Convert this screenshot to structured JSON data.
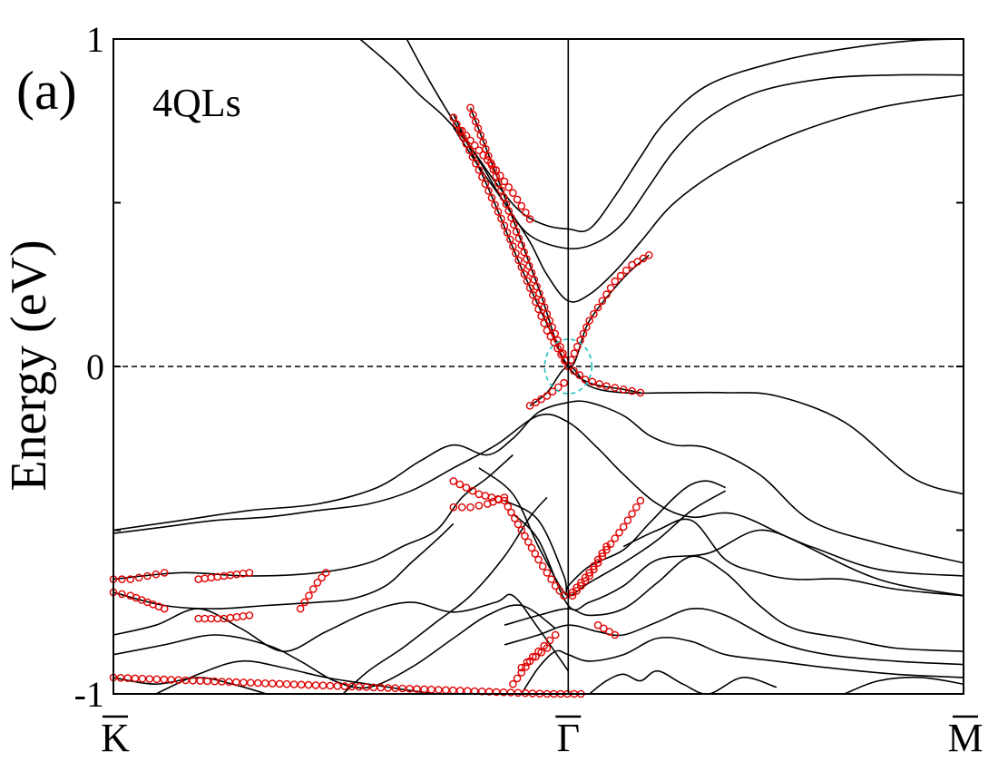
{
  "chart_data": {
    "type": "line",
    "panel_label": "(a)",
    "annotation": "4QLs",
    "ylabel": "Energy (eV)",
    "xlabel": "",
    "xlim": [
      0,
      1
    ],
    "ylim": [
      -1,
      1
    ],
    "yticks": [
      {
        "value": 1,
        "label": "1"
      },
      {
        "value": 0.5,
        "label": ""
      },
      {
        "value": 0,
        "label": "0"
      },
      {
        "value": -0.5,
        "label": ""
      },
      {
        "value": -1,
        "label": "-1"
      }
    ],
    "kpoints": [
      {
        "x": 0,
        "label": "K"
      },
      {
        "x": 0.535,
        "label": "Γ"
      },
      {
        "x": 1,
        "label": "M"
      }
    ],
    "fermi_level": 0,
    "highlight_circle": {
      "x": 0.535,
      "y": 0,
      "color": "#20c0c0"
    },
    "marker_color": "#e00000",
    "bands": [
      {
        "x": [
          0.29,
          0.33,
          0.36,
          0.39,
          0.42,
          0.45,
          0.48,
          0.51,
          0.535,
          0.56,
          0.59,
          0.62,
          0.65,
          0.7,
          0.78,
          0.86,
          0.94,
          1.0
        ],
        "y": [
          1.0,
          0.91,
          0.83,
          0.76,
          0.67,
          0.56,
          0.47,
          0.43,
          0.42,
          0.42,
          0.52,
          0.64,
          0.75,
          0.86,
          0.93,
          0.97,
          0.995,
          1.0
        ]
      },
      {
        "x": [
          0.345,
          0.37,
          0.4,
          0.43,
          0.46,
          0.49,
          0.535,
          0.57,
          0.6,
          0.63,
          0.66,
          0.7,
          0.76,
          0.84,
          0.92,
          1.0
        ],
        "y": [
          1.0,
          0.88,
          0.75,
          0.63,
          0.5,
          0.4,
          0.36,
          0.38,
          0.44,
          0.55,
          0.66,
          0.76,
          0.84,
          0.88,
          0.89,
          0.89
        ]
      },
      {
        "x": [
          0.4,
          0.43,
          0.46,
          0.49,
          0.51,
          0.535,
          0.56,
          0.59,
          0.62,
          0.66,
          0.72,
          0.8,
          0.9,
          1.0
        ],
        "y": [
          0.73,
          0.61,
          0.5,
          0.38,
          0.28,
          0.2,
          0.22,
          0.29,
          0.38,
          0.5,
          0.61,
          0.71,
          0.79,
          0.83
        ]
      },
      {
        "x": [
          0.4,
          0.44,
          0.48,
          0.51,
          0.535,
          0.56,
          0.6,
          0.62
        ],
        "y": [
          0.77,
          0.55,
          0.3,
          0.13,
          0.0,
          -0.05,
          -0.07,
          -0.08
        ]
      },
      {
        "x": [
          0.42,
          0.46,
          0.5,
          0.535,
          0.56,
          0.6,
          0.63
        ],
        "y": [
          0.79,
          0.52,
          0.24,
          0.0,
          0.14,
          0.27,
          0.34
        ]
      },
      {
        "x": [
          0.49,
          0.51,
          0.535,
          0.56,
          0.6,
          0.66,
          0.72,
          0.78,
          0.86,
          0.94,
          1.0
        ],
        "y": [
          -0.12,
          -0.08,
          0.0,
          -0.06,
          -0.08,
          -0.08,
          -0.08,
          -0.09,
          -0.17,
          -0.34,
          -0.39
        ]
      },
      {
        "x": [
          0.0,
          0.08,
          0.16,
          0.24,
          0.31,
          0.36,
          0.4,
          0.44,
          0.47,
          0.5,
          0.535,
          0.56,
          0.6,
          0.63,
          0.66,
          0.7,
          0.76,
          0.82,
          0.9,
          1.0
        ],
        "y": [
          -0.5,
          -0.47,
          -0.44,
          -0.42,
          -0.37,
          -0.29,
          -0.24,
          -0.27,
          -0.22,
          -0.14,
          -0.11,
          -0.11,
          -0.15,
          -0.21,
          -0.24,
          -0.25,
          -0.33,
          -0.47,
          -0.54,
          -0.6
        ]
      },
      {
        "x": [
          0.0,
          0.06,
          0.12,
          0.18,
          0.24,
          0.3,
          0.35,
          0.4,
          0.45,
          0.5,
          0.535,
          0.57,
          0.6,
          0.64,
          0.68,
          0.73,
          0.8,
          0.9,
          1.0
        ],
        "y": [
          -0.51,
          -0.49,
          -0.47,
          -0.46,
          -0.44,
          -0.42,
          -0.38,
          -0.31,
          -0.24,
          -0.15,
          -0.17,
          -0.25,
          -0.33,
          -0.42,
          -0.46,
          -0.45,
          -0.53,
          -0.65,
          -0.7
        ]
      },
      {
        "x": [
          0.0,
          0.08,
          0.16,
          0.24,
          0.3,
          0.34,
          0.38,
          0.41,
          0.44,
          0.47
        ],
        "y": [
          -0.65,
          -0.63,
          -0.64,
          -0.63,
          -0.6,
          -0.55,
          -0.5,
          -0.4,
          -0.34,
          -0.27
        ]
      },
      {
        "x": [
          0.0,
          0.06,
          0.12,
          0.18,
          0.24,
          0.28,
          0.32,
          0.35,
          0.38,
          0.4
        ],
        "y": [
          -0.69,
          -0.73,
          -0.74,
          -0.73,
          -0.72,
          -0.71,
          -0.67,
          -0.6,
          -0.53,
          -0.48
        ]
      },
      {
        "x": [
          0.0,
          0.05,
          0.1,
          0.15,
          0.2,
          0.25,
          0.3,
          0.35,
          0.4,
          0.45,
          0.47,
          0.5,
          0.535
        ],
        "y": [
          -0.82,
          -0.79,
          -0.74,
          -0.8,
          -0.87,
          -0.81,
          -0.75,
          -0.72,
          -0.75,
          -0.72,
          -0.7,
          -0.8,
          -0.93
        ]
      },
      {
        "x": [
          0.0,
          0.06,
          0.12,
          0.18,
          0.22,
          0.26,
          0.3,
          0.35,
          0.4,
          0.44,
          0.48,
          0.52
        ],
        "y": [
          -0.88,
          -0.85,
          -0.82,
          -0.85,
          -0.9,
          -0.96,
          -0.98,
          -0.92,
          -0.83,
          -0.76,
          -0.73,
          -0.8
        ]
      },
      {
        "x": [
          0.0,
          0.05,
          0.1,
          0.14,
          0.18
        ],
        "y": [
          -0.95,
          -0.97,
          -0.95,
          -0.97,
          -1.0
        ]
      },
      {
        "x": [
          0.05,
          0.1,
          0.15,
          0.2,
          0.25,
          0.3,
          0.35,
          0.38
        ],
        "y": [
          -1.0,
          -0.94,
          -0.9,
          -0.92,
          -0.95,
          -0.97,
          -0.99,
          -1.0
        ]
      },
      {
        "x": [
          0.27,
          0.3,
          0.34,
          0.38,
          0.42,
          0.46,
          0.49,
          0.51
        ],
        "y": [
          -1.0,
          -0.93,
          -0.86,
          -0.78,
          -0.7,
          -0.58,
          -0.46,
          -0.4
        ]
      },
      {
        "x": [
          0.43,
          0.47,
          0.5,
          0.53,
          0.535,
          0.56,
          0.6,
          0.63,
          0.66,
          0.68,
          0.7,
          0.72
        ],
        "y": [
          -0.31,
          -0.39,
          -0.55,
          -0.69,
          -0.67,
          -0.61,
          -0.56,
          -0.48,
          -0.4,
          -0.36,
          -0.35,
          -0.37
        ]
      },
      {
        "x": [
          0.46,
          0.5,
          0.53,
          0.535,
          0.56,
          0.6,
          0.64,
          0.68,
          0.72
        ],
        "y": [
          -0.41,
          -0.47,
          -0.64,
          -0.7,
          -0.66,
          -0.6,
          -0.53,
          -0.44,
          -0.38
        ]
      },
      {
        "x": [
          0.47,
          0.5,
          0.535,
          0.56,
          0.6,
          0.64,
          0.7,
          0.76,
          0.82,
          0.9,
          1.0
        ],
        "y": [
          -0.45,
          -0.53,
          -0.73,
          -0.72,
          -0.67,
          -0.59,
          -0.57,
          -0.5,
          -0.55,
          -0.62,
          -0.64
        ]
      },
      {
        "x": [
          0.6,
          0.64,
          0.68,
          0.72,
          0.76,
          0.8,
          0.86,
          0.92,
          1.0
        ],
        "y": [
          -0.55,
          -0.5,
          -0.47,
          -0.59,
          -0.63,
          -0.65,
          -0.65,
          -0.68,
          -0.7
        ]
      },
      {
        "x": [
          0.46,
          0.5,
          0.535,
          0.56,
          0.6,
          0.64,
          0.68,
          0.72,
          0.76,
          0.8,
          0.86,
          0.92,
          1.0
        ],
        "y": [
          -0.79,
          -0.76,
          -0.74,
          -0.76,
          -0.74,
          -0.66,
          -0.58,
          -0.63,
          -0.73,
          -0.8,
          -0.83,
          -0.86,
          -0.87
        ]
      },
      {
        "x": [
          0.46,
          0.5,
          0.535,
          0.57,
          0.6,
          0.64,
          0.68,
          0.72,
          0.78,
          0.84,
          0.92,
          1.0
        ],
        "y": [
          -0.85,
          -0.82,
          -0.79,
          -0.81,
          -0.82,
          -0.78,
          -0.74,
          -0.76,
          -0.84,
          -0.88,
          -0.9,
          -0.91
        ]
      },
      {
        "x": [
          0.48,
          0.5,
          0.52,
          0.535,
          0.56,
          0.6,
          0.64,
          0.68,
          0.72,
          0.78,
          0.84,
          0.92,
          1.0
        ],
        "y": [
          -1.0,
          -0.92,
          -0.87,
          -0.88,
          -0.9,
          -0.88,
          -0.83,
          -0.84,
          -0.88,
          -0.9,
          -0.92,
          -0.94,
          -0.95
        ]
      },
      {
        "x": [
          0.56,
          0.58,
          0.6,
          0.62,
          0.64,
          0.67,
          0.7,
          0.74,
          0.78
        ],
        "y": [
          -1.0,
          -0.96,
          -0.94,
          -0.96,
          -0.93,
          -0.97,
          -1.0,
          -0.95,
          -0.98
        ]
      },
      {
        "x": [
          0.86,
          0.9,
          0.95,
          1.0
        ],
        "y": [
          -1.0,
          -0.96,
          -0.95,
          -0.97
        ]
      }
    ],
    "weighted_states": [
      {
        "x": [
          0.4,
          0.43,
          0.46,
          0.49,
          0.51,
          0.535,
          0.555,
          0.58,
          0.6,
          0.62
        ],
        "y": [
          0.76,
          0.6,
          0.43,
          0.24,
          0.11,
          0.0,
          -0.04,
          -0.06,
          -0.07,
          -0.08
        ]
      },
      {
        "x": [
          0.42,
          0.45,
          0.48,
          0.51,
          0.535,
          0.56,
          0.59,
          0.61,
          0.63
        ],
        "y": [
          0.79,
          0.58,
          0.37,
          0.16,
          0.0,
          0.14,
          0.26,
          0.31,
          0.34
        ]
      },
      {
        "x": [
          0.41,
          0.43,
          0.45,
          0.47,
          0.49
        ],
        "y": [
          0.72,
          0.66,
          0.6,
          0.53,
          0.45
        ]
      },
      {
        "x": [
          0.49,
          0.51,
          0.53
        ],
        "y": [
          -0.12,
          -0.09,
          -0.05
        ]
      },
      {
        "x": [
          0.0,
          0.02,
          0.04,
          0.06
        ],
        "y": [
          -0.65,
          -0.65,
          -0.64,
          -0.63
        ]
      },
      {
        "x": [
          0.1,
          0.13,
          0.16
        ],
        "y": [
          -0.65,
          -0.64,
          -0.63
        ]
      },
      {
        "x": [
          0.0,
          0.02,
          0.04,
          0.06
        ],
        "y": [
          -0.69,
          -0.7,
          -0.72,
          -0.74
        ]
      },
      {
        "x": [
          0.1,
          0.13,
          0.16
        ],
        "y": [
          -0.77,
          -0.77,
          -0.76
        ]
      },
      {
        "x": [
          0.22,
          0.24,
          0.25
        ],
        "y": [
          -0.74,
          -0.66,
          -0.63
        ]
      },
      {
        "x": [
          0.4,
          0.43,
          0.46,
          0.48,
          0.5,
          0.52,
          0.53
        ],
        "y": [
          -0.35,
          -0.39,
          -0.41,
          -0.5,
          -0.59,
          -0.67,
          -0.7
        ]
      },
      {
        "x": [
          0.4,
          0.42,
          0.44,
          0.46
        ],
        "y": [
          -0.43,
          -0.43,
          -0.42,
          -0.4
        ]
      },
      {
        "x": [
          0.54,
          0.56,
          0.58,
          0.6,
          0.62
        ],
        "y": [
          -0.7,
          -0.64,
          -0.56,
          -0.49,
          -0.41
        ]
      },
      {
        "x": [
          0.54,
          0.56,
          0.58
        ],
        "y": [
          -0.69,
          -0.63,
          -0.55
        ]
      },
      {
        "x": [
          0.57,
          0.59
        ],
        "y": [
          -0.79,
          -0.82
        ]
      },
      {
        "x": [
          0.47,
          0.49,
          0.51
        ],
        "y": [
          -0.97,
          -0.9,
          -0.86
        ]
      },
      {
        "x": [
          0.48,
          0.5,
          0.52
        ],
        "y": [
          -0.92,
          -0.87,
          -0.82
        ]
      },
      {
        "x": [
          0.0,
          0.51,
          0.55
        ],
        "y": [
          -0.95,
          -1.0,
          -1.0
        ]
      }
    ]
  }
}
